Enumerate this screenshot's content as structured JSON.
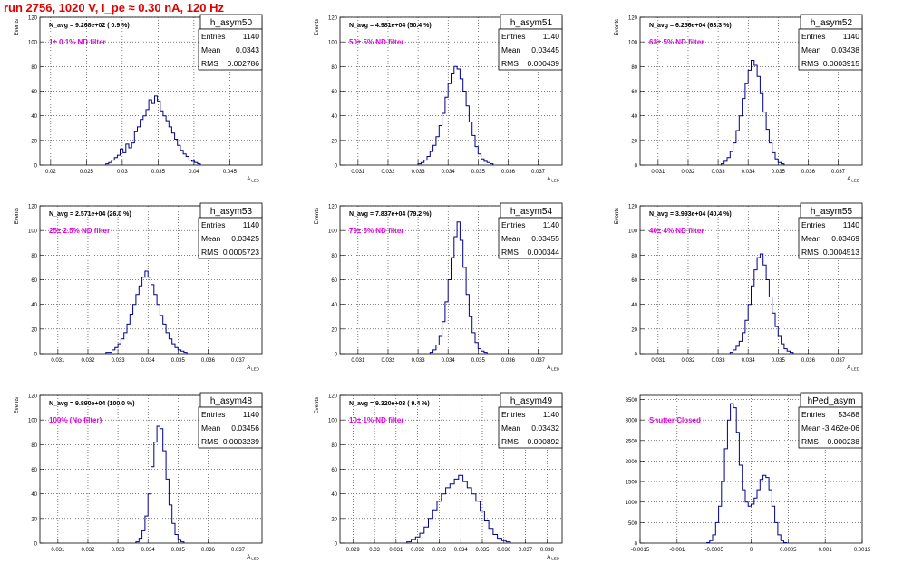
{
  "page": {
    "title": "run 2756,  1020 V, I_pe ≈ 0.30 nA, 120 Hz"
  },
  "chart_data": [
    {
      "type": "histogram",
      "name": "h_asym50",
      "stats": {
        "entries": "1140",
        "mean": "0.0343",
        "rms": "0.002786"
      },
      "navg": "N_avg = 9.268e+02 ( 0.9 %)",
      "filter": "1± 0.1% ND filter",
      "ylabel": "Events",
      "xlabel": "A_LED",
      "xlim": [
        0.0185,
        0.0495
      ],
      "ylim": [
        0,
        120
      ],
      "xticks": [
        "0.02",
        "0.025",
        "0.03",
        "0.035",
        "0.04",
        "0.045"
      ],
      "xtick_values": [
        0.02,
        0.025,
        0.03,
        0.035,
        0.04,
        0.045
      ],
      "yticks": [
        0,
        20,
        40,
        60,
        80,
        100,
        120
      ],
      "bin_start": 0.0277,
      "bin_width": 0.0004,
      "values": [
        1,
        2,
        4,
        6,
        8,
        13,
        10,
        17,
        14,
        18,
        27,
        31,
        37,
        40,
        45,
        53,
        50,
        56,
        52,
        44,
        40,
        36,
        31,
        26,
        21,
        16,
        12,
        9,
        7,
        4,
        3,
        2,
        1
      ]
    },
    {
      "type": "histogram",
      "name": "h_asym51",
      "stats": {
        "entries": "1140",
        "mean": "0.03445",
        "rms": "0.000439"
      },
      "navg": "N_avg = 4.981e+04 (50.4 %)",
      "filter": "50± 5% ND filter",
      "ylabel": "Events",
      "xlabel": "A_LED",
      "xlim": [
        0.0304,
        0.0378
      ],
      "ylim": [
        0,
        120
      ],
      "xticks": [
        "0.031",
        "0.032",
        "0.033",
        "0.034",
        "0.035",
        "0.036",
        "0.037"
      ],
      "xtick_values": [
        0.031,
        0.032,
        0.033,
        0.034,
        0.035,
        0.036,
        0.037
      ],
      "yticks": [
        0,
        20,
        40,
        60,
        80,
        100,
        120
      ],
      "bin_start": 0.033,
      "bin_width": 0.0001,
      "values": [
        1,
        2,
        4,
        7,
        11,
        16,
        23,
        32,
        42,
        55,
        66,
        74,
        80,
        78,
        70,
        60,
        48,
        35,
        24,
        15,
        9,
        5,
        3,
        2,
        1
      ]
    },
    {
      "type": "histogram",
      "name": "h_asym52",
      "stats": {
        "entries": "1140",
        "mean": "0.03438",
        "rms": "0.0003915"
      },
      "navg": "N_avg = 6.256e+04 (63.3 %)",
      "filter": "63± 5% ND filter",
      "ylabel": "Events",
      "xlabel": "A_LED",
      "xlim": [
        0.0304,
        0.0378
      ],
      "ylim": [
        0,
        120
      ],
      "xticks": [
        "0.031",
        "0.032",
        "0.033",
        "0.034",
        "0.035",
        "0.036",
        "0.037"
      ],
      "xtick_values": [
        0.031,
        0.032,
        0.033,
        0.034,
        0.035,
        0.036,
        0.037
      ],
      "yticks": [
        0,
        20,
        40,
        60,
        80,
        100,
        120
      ],
      "bin_start": 0.0331,
      "bin_width": 0.0001,
      "values": [
        1,
        3,
        6,
        11,
        18,
        28,
        40,
        54,
        66,
        77,
        85,
        81,
        72,
        58,
        43,
        29,
        18,
        10,
        5,
        2,
        1
      ]
    },
    {
      "type": "histogram",
      "name": "h_asym53",
      "stats": {
        "entries": "1140",
        "mean": "0.03425",
        "rms": "0.0005723"
      },
      "navg": "N_avg = 2.571e+04 (26.0 %)",
      "filter": "25± 2.5% ND filter",
      "ylabel": "Events",
      "xlabel": "A_LED",
      "xlim": [
        0.0304,
        0.0378
      ],
      "ylim": [
        0,
        120
      ],
      "xticks": [
        "0.031",
        "0.032",
        "0.033",
        "0.034",
        "0.035",
        "0.036",
        "0.037"
      ],
      "xtick_values": [
        0.031,
        0.032,
        0.033,
        0.034,
        0.035,
        0.036,
        0.037
      ],
      "yticks": [
        0,
        20,
        40,
        60,
        80,
        100,
        120
      ],
      "bin_start": 0.0326,
      "bin_width": 0.0001,
      "values": [
        1,
        1,
        3,
        5,
        8,
        12,
        17,
        24,
        32,
        40,
        48,
        55,
        62,
        67,
        62,
        56,
        48,
        40,
        31,
        24,
        17,
        12,
        8,
        5,
        3,
        2,
        1
      ]
    },
    {
      "type": "histogram",
      "name": "h_asym54",
      "stats": {
        "entries": "1140",
        "mean": "0.03455",
        "rms": "0.000344"
      },
      "navg": "N_avg = 7.837e+04 (79.2 %)",
      "filter": "79± 5% ND filter",
      "ylabel": "Events",
      "xlabel": "A_LED",
      "xlim": [
        0.0304,
        0.0378
      ],
      "ylim": [
        0,
        120
      ],
      "xticks": [
        "0.031",
        "0.032",
        "0.033",
        "0.034",
        "0.035",
        "0.036",
        "0.037"
      ],
      "xtick_values": [
        0.031,
        0.032,
        0.033,
        0.034,
        0.035,
        0.036,
        0.037
      ],
      "yticks": [
        0,
        20,
        40,
        60,
        80,
        100,
        120
      ],
      "bin_start": 0.0334,
      "bin_width": 0.0001,
      "values": [
        1,
        3,
        7,
        14,
        26,
        42,
        60,
        78,
        95,
        107,
        92,
        70,
        48,
        30,
        17,
        9,
        4,
        2,
        1
      ]
    },
    {
      "type": "histogram",
      "name": "h_asym55",
      "stats": {
        "entries": "1140",
        "mean": "0.03469",
        "rms": "0.0004513"
      },
      "navg": "N_avg = 3.993e+04 (40.4 %)",
      "filter": "40± 4% ND filter",
      "ylabel": "Events",
      "xlabel": "A_LED",
      "xlim": [
        0.0304,
        0.0378
      ],
      "ylim": [
        0,
        120
      ],
      "xticks": [
        "0.031",
        "0.032",
        "0.033",
        "0.034",
        "0.035",
        "0.036",
        "0.037"
      ],
      "xtick_values": [
        0.031,
        0.032,
        0.033,
        0.034,
        0.035,
        0.036,
        0.037
      ],
      "yticks": [
        0,
        20,
        40,
        60,
        80,
        100,
        120
      ],
      "bin_start": 0.0334,
      "bin_width": 0.0001,
      "values": [
        1,
        3,
        6,
        10,
        17,
        27,
        40,
        55,
        68,
        78,
        81,
        72,
        60,
        46,
        33,
        22,
        14,
        8,
        4,
        2,
        1
      ]
    },
    {
      "type": "histogram",
      "name": "h_asym48",
      "stats": {
        "entries": "1140",
        "mean": "0.03456",
        "rms": "0.0003239"
      },
      "navg": "N_avg = 9.890e+04 (100.0 %)",
      "filter": "100% (No filter)",
      "ylabel": "Events",
      "xlabel": "A_LED",
      "xlim": [
        0.0304,
        0.0378
      ],
      "ylim": [
        0,
        120
      ],
      "xticks": [
        "0.031",
        "0.032",
        "0.033",
        "0.034",
        "0.035",
        "0.036",
        "0.037"
      ],
      "xtick_values": [
        0.031,
        0.032,
        0.033,
        0.034,
        0.035,
        0.036,
        0.037
      ],
      "yticks": [
        0,
        20,
        40,
        60,
        80,
        100,
        120
      ],
      "bin_start": 0.0336,
      "bin_width": 0.0001,
      "values": [
        1,
        4,
        10,
        22,
        40,
        62,
        82,
        95,
        93,
        75,
        52,
        31,
        16,
        7,
        3,
        1
      ]
    },
    {
      "type": "histogram",
      "name": "h_asym49",
      "stats": {
        "entries": "1140",
        "mean": "0.03432",
        "rms": "0.000892"
      },
      "navg": "N_avg = 9.320e+03 ( 9.4 %)",
      "filter": "10± 1% ND filter",
      "ylabel": "Events",
      "xlabel": "A_LED",
      "xlim": [
        0.0284,
        0.0387
      ],
      "ylim": [
        0,
        120
      ],
      "xticks": [
        "0.029",
        "0.03",
        "0.031",
        "0.032",
        "0.033",
        "0.034",
        "0.035",
        "0.036",
        "0.037",
        "0.038"
      ],
      "xtick_values": [
        0.029,
        0.03,
        0.031,
        0.032,
        0.033,
        0.034,
        0.035,
        0.036,
        0.037,
        0.038
      ],
      "yticks": [
        0,
        20,
        40,
        60,
        80,
        100,
        120
      ],
      "bin_start": 0.0315,
      "bin_width": 0.0002,
      "values": [
        1,
        3,
        5,
        8,
        13,
        20,
        27,
        34,
        40,
        45,
        48,
        52,
        55,
        50,
        45,
        40,
        34,
        26,
        18,
        12,
        7,
        4,
        2,
        1
      ]
    },
    {
      "type": "histogram",
      "name": "hPed_asym",
      "stats": {
        "entries": "53488",
        "mean": "-3.462e-06",
        "rms": "0.000238"
      },
      "navg": "",
      "filter": "Shutter Closed",
      "ylabel": "",
      "xlabel": "",
      "xlim": [
        -0.0015,
        0.0015
      ],
      "ylim": [
        0,
        3600
      ],
      "xticks": [
        "-0.0015",
        "-0.001",
        "-0.0005",
        "0",
        "0.0005",
        "0.001",
        "0.0015"
      ],
      "xtick_values": [
        -0.0015,
        -0.001,
        -0.0005,
        0,
        0.0005,
        0.001,
        0.0015
      ],
      "yticks": [
        0,
        500,
        1000,
        1500,
        2000,
        2500,
        3000,
        3500
      ],
      "bin_start": -0.0006,
      "bin_width": 4e-05,
      "values": [
        10,
        60,
        200,
        500,
        900,
        1500,
        2300,
        3000,
        3400,
        3300,
        2700,
        1900,
        1300,
        1000,
        900,
        950,
        1100,
        1300,
        1550,
        1650,
        1600,
        1300,
        900,
        500,
        200,
        60,
        10
      ]
    }
  ]
}
